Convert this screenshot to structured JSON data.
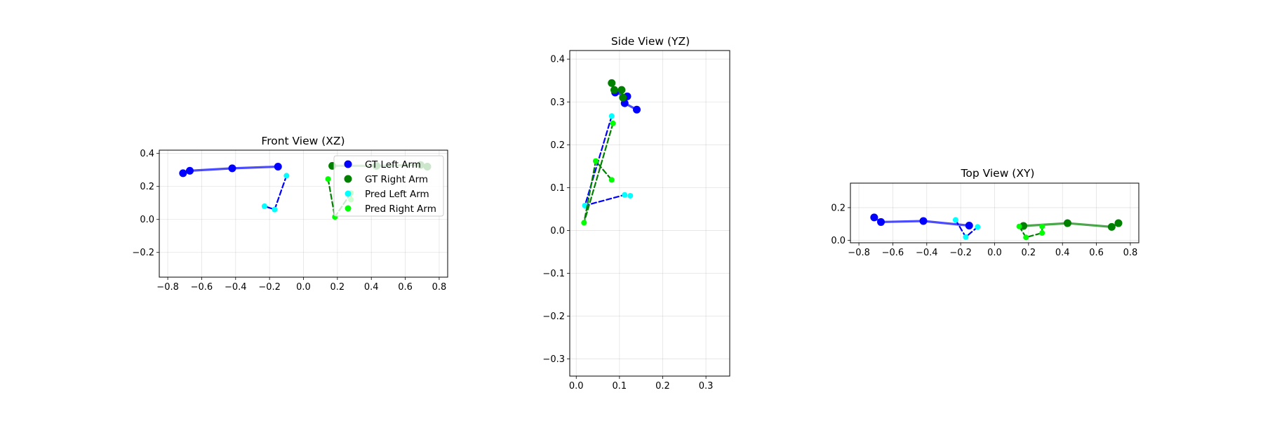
{
  "chart_data": [
    {
      "type": "scatter",
      "title": "Front View (XZ)",
      "xlabel": "",
      "ylabel": "",
      "xlim": [
        -0.85,
        0.85
      ],
      "ylim": [
        -0.35,
        0.42
      ],
      "xticks": [
        -0.8,
        -0.6,
        -0.4,
        -0.2,
        0.0,
        0.2,
        0.4,
        0.6,
        0.8
      ],
      "yticks": [
        -0.2,
        0.0,
        0.2,
        0.4
      ],
      "grid": true,
      "legend": {
        "placement": "upper-right"
      },
      "series": [
        {
          "name": "GT Left Arm",
          "color": "#0000ff",
          "style": "solid",
          "x": [
            -0.71,
            -0.67,
            -0.42,
            -0.15
          ],
          "y": [
            0.28,
            0.295,
            0.31,
            0.32
          ]
        },
        {
          "name": "GT Right Arm",
          "color": "#008000",
          "style": "solid",
          "x": [
            0.17,
            0.43,
            0.69,
            0.73
          ],
          "y": [
            0.325,
            0.325,
            0.33,
            0.32
          ]
        },
        {
          "name": "Pred Left Arm",
          "color": "#00ffff",
          "line_color": "#0000ff",
          "style": "dashed",
          "x": [
            -0.1,
            -0.17,
            -0.23
          ],
          "y": [
            0.265,
            0.06,
            0.08
          ]
        },
        {
          "name": "Pred Right Arm",
          "color": "#00ff00",
          "line_color": "#008000",
          "style": "dashed",
          "x": [
            0.145,
            0.185,
            0.28,
            0.28
          ],
          "y": [
            0.245,
            0.015,
            0.16,
            0.12
          ]
        }
      ]
    },
    {
      "type": "scatter",
      "title": "Side View (YZ)",
      "xlabel": "",
      "ylabel": "",
      "xlim": [
        -0.015,
        0.355
      ],
      "ylim": [
        -0.34,
        0.42
      ],
      "xticks": [
        0.0,
        0.1,
        0.2,
        0.3
      ],
      "yticks": [
        -0.3,
        -0.2,
        -0.1,
        0.0,
        0.1,
        0.2,
        0.3,
        0.4
      ],
      "grid": true,
      "series": [
        {
          "name": "GT Left Arm",
          "color": "#0000ff",
          "style": "solid",
          "x": [
            0.14,
            0.112,
            0.118,
            0.09
          ],
          "y": [
            0.282,
            0.297,
            0.313,
            0.322
          ]
        },
        {
          "name": "GT Right Arm",
          "color": "#008000",
          "style": "solid",
          "x": [
            0.082,
            0.088,
            0.105,
            0.108
          ],
          "y": [
            0.344,
            0.328,
            0.328,
            0.31
          ]
        },
        {
          "name": "Pred Left Arm",
          "color": "#00ffff",
          "line_color": "#0000ff",
          "style": "dashed",
          "x": [
            0.082,
            0.02,
            0.112,
            0.125
          ],
          "y": [
            0.267,
            0.058,
            0.083,
            0.081
          ]
        },
        {
          "name": "Pred Right Arm",
          "color": "#00ff00",
          "line_color": "#008000",
          "style": "dashed",
          "x": [
            0.085,
            0.018,
            0.045,
            0.082
          ],
          "y": [
            0.25,
            0.018,
            0.162,
            0.118
          ]
        }
      ]
    },
    {
      "type": "scatter",
      "title": "Top View (XY)",
      "xlabel": "",
      "ylabel": "",
      "xlim": [
        -0.85,
        0.85
      ],
      "ylim": [
        -0.015,
        0.35
      ],
      "xticks": [
        -0.8,
        -0.6,
        -0.4,
        -0.2,
        0.0,
        0.2,
        0.4,
        0.6,
        0.8
      ],
      "yticks": [
        0.0,
        0.2
      ],
      "grid": true,
      "series": [
        {
          "name": "GT Left Arm",
          "color": "#0000ff",
          "style": "solid",
          "x": [
            -0.71,
            -0.67,
            -0.42,
            -0.15
          ],
          "y": [
            0.14,
            0.112,
            0.118,
            0.09
          ]
        },
        {
          "name": "GT Right Arm",
          "color": "#008000",
          "style": "solid",
          "x": [
            0.17,
            0.43,
            0.69,
            0.73
          ],
          "y": [
            0.088,
            0.105,
            0.082,
            0.105
          ]
        },
        {
          "name": "Pred Left Arm",
          "color": "#00ffff",
          "line_color": "#0000ff",
          "style": "dashed",
          "x": [
            -0.23,
            -0.17,
            -0.1
          ],
          "y": [
            0.125,
            0.02,
            0.082
          ]
        },
        {
          "name": "Pred Right Arm",
          "color": "#00ff00",
          "line_color": "#008000",
          "style": "dashed",
          "x": [
            0.145,
            0.185,
            0.28,
            0.28
          ],
          "y": [
            0.085,
            0.018,
            0.045,
            0.085
          ]
        }
      ]
    }
  ]
}
